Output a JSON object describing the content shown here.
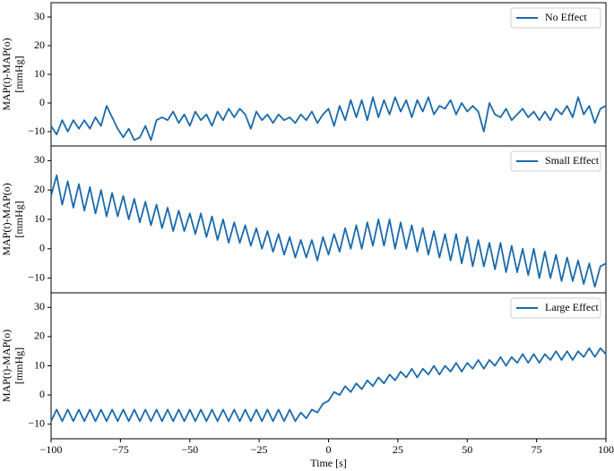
{
  "chart_data": [
    {
      "type": "line",
      "ylabel": [
        "MAP(t)-MAP(o)",
        "[mmHg]"
      ],
      "x": [
        -100,
        -98,
        -96,
        -94,
        -92,
        -90,
        -88,
        -86,
        -84,
        -82,
        -80,
        -78,
        -76,
        -74,
        -72,
        -70,
        -68,
        -66,
        -64,
        -62,
        -60,
        -58,
        -56,
        -54,
        -52,
        -50,
        -48,
        -46,
        -44,
        -42,
        -40,
        -38,
        -36,
        -34,
        -32,
        -30,
        -28,
        -26,
        -24,
        -22,
        -20,
        -18,
        -16,
        -14,
        -12,
        -10,
        -8,
        -6,
        -4,
        -2,
        0,
        2,
        4,
        6,
        8,
        10,
        12,
        14,
        16,
        18,
        20,
        22,
        24,
        26,
        28,
        30,
        32,
        34,
        36,
        38,
        40,
        42,
        44,
        46,
        48,
        50,
        52,
        54,
        56,
        58,
        60,
        62,
        64,
        66,
        68,
        70,
        72,
        74,
        76,
        78,
        80,
        82,
        84,
        86,
        88,
        90,
        92,
        94,
        96,
        98,
        100
      ],
      "series": [
        {
          "name": "No Effect",
          "color": "#1a6aab",
          "values": [
            -8,
            -11,
            -6,
            -10,
            -6,
            -9,
            -6,
            -9,
            -5,
            -8,
            -1,
            -5,
            -9,
            -12,
            -9,
            -13,
            -12,
            -8,
            -13,
            -6,
            -5,
            -6,
            -3,
            -7,
            -4,
            -8,
            -3,
            -6,
            -4,
            -8,
            -3,
            -6,
            -2,
            -5,
            -2,
            -4,
            -9,
            -3,
            -6,
            -4,
            -7,
            -4,
            -6,
            -5,
            -7,
            -4,
            -6,
            -3,
            -7,
            -4,
            -2,
            -8,
            -1,
            -6,
            1,
            -5,
            1,
            -6,
            2,
            -5,
            1,
            -4,
            2,
            -3,
            1,
            -5,
            1,
            -3,
            2,
            -4,
            -1,
            -2,
            1,
            -4,
            0,
            -3,
            -1,
            -3,
            -10,
            0,
            -4,
            -5,
            -2,
            -6,
            -4,
            -2,
            -5,
            -3,
            -6,
            -3,
            -6,
            -2,
            -4,
            -1,
            -5,
            2,
            -4,
            -1,
            -7,
            -2,
            -1
          ]
        }
      ],
      "xlim": [
        -100,
        100
      ],
      "ylim": [
        -15,
        35
      ],
      "yticks": [
        {
          "value": -10,
          "label": "−10"
        },
        0,
        10,
        20,
        30
      ],
      "legend": "upper right"
    },
    {
      "type": "line",
      "ylabel": [
        "MAP(t)-MAP(o)",
        "[mmHg]"
      ],
      "x": [
        -100,
        -98,
        -96,
        -94,
        -92,
        -90,
        -88,
        -86,
        -84,
        -82,
        -80,
        -78,
        -76,
        -74,
        -72,
        -70,
        -68,
        -66,
        -64,
        -62,
        -60,
        -58,
        -56,
        -54,
        -52,
        -50,
        -48,
        -46,
        -44,
        -42,
        -40,
        -38,
        -36,
        -34,
        -32,
        -30,
        -28,
        -26,
        -24,
        -22,
        -20,
        -18,
        -16,
        -14,
        -12,
        -10,
        -8,
        -6,
        -4,
        -2,
        0,
        2,
        4,
        6,
        8,
        10,
        12,
        14,
        16,
        18,
        20,
        22,
        24,
        26,
        28,
        30,
        32,
        34,
        36,
        38,
        40,
        42,
        44,
        46,
        48,
        50,
        52,
        54,
        56,
        58,
        60,
        62,
        64,
        66,
        68,
        70,
        72,
        74,
        76,
        78,
        80,
        82,
        84,
        86,
        88,
        90,
        92,
        94,
        96,
        98,
        100
      ],
      "series": [
        {
          "name": "Small Effect",
          "color": "#1a6aab",
          "values": [
            18,
            25,
            15,
            23,
            14,
            22,
            13,
            21,
            12,
            20,
            11,
            19,
            11,
            18,
            10,
            17,
            9,
            16,
            8,
            15,
            7,
            14,
            6,
            13,
            6,
            12,
            5,
            12,
            4,
            11,
            3,
            10,
            2,
            9,
            2,
            8,
            1,
            7,
            0,
            6,
            -1,
            5,
            -2,
            4,
            -3,
            3,
            -3,
            3,
            -4,
            4,
            -2,
            5,
            -1,
            7,
            0,
            8,
            0,
            9,
            1,
            10,
            1,
            10,
            0,
            9,
            0,
            8,
            -1,
            7,
            -2,
            6,
            -3,
            5,
            -4,
            5,
            -5,
            4,
            -6,
            3,
            -6,
            2,
            -7,
            2,
            -8,
            1,
            -8,
            0,
            -9,
            0,
            -10,
            -1,
            -10,
            -2,
            -11,
            -3,
            -11,
            -4,
            -12,
            -5,
            -13,
            -6,
            -5
          ]
        }
      ],
      "xlim": [
        -100,
        100
      ],
      "ylim": [
        -15,
        35
      ],
      "yticks": [
        {
          "value": -10,
          "label": "−10"
        },
        0,
        10,
        20,
        30
      ],
      "legend": "upper right"
    },
    {
      "type": "line",
      "ylabel": [
        "MAP(t)-MAP(o)",
        "[mmHg]"
      ],
      "xlabel": "Time [s]",
      "x": [
        -100,
        -98,
        -96,
        -94,
        -92,
        -90,
        -88,
        -86,
        -84,
        -82,
        -80,
        -78,
        -76,
        -74,
        -72,
        -70,
        -68,
        -66,
        -64,
        -62,
        -60,
        -58,
        -56,
        -54,
        -52,
        -50,
        -48,
        -46,
        -44,
        -42,
        -40,
        -38,
        -36,
        -34,
        -32,
        -30,
        -28,
        -26,
        -24,
        -22,
        -20,
        -18,
        -16,
        -14,
        -12,
        -10,
        -8,
        -6,
        -4,
        -2,
        0,
        2,
        4,
        6,
        8,
        10,
        12,
        14,
        16,
        18,
        20,
        22,
        24,
        26,
        28,
        30,
        32,
        34,
        36,
        38,
        40,
        42,
        44,
        46,
        48,
        50,
        52,
        54,
        56,
        58,
        60,
        62,
        64,
        66,
        68,
        70,
        72,
        74,
        76,
        78,
        80,
        82,
        84,
        86,
        88,
        90,
        92,
        94,
        96,
        98,
        100
      ],
      "series": [
        {
          "name": "Large Effect",
          "color": "#1a6aab",
          "values": [
            -9,
            -5,
            -9,
            -5,
            -9,
            -5,
            -9,
            -5,
            -9,
            -5,
            -9,
            -5,
            -9,
            -5,
            -9,
            -5,
            -9,
            -5,
            -9,
            -5,
            -9,
            -5,
            -9,
            -5,
            -9,
            -5,
            -9,
            -5,
            -9,
            -5,
            -9,
            -5,
            -9,
            -5,
            -9,
            -5,
            -9,
            -5,
            -9,
            -5,
            -9,
            -5,
            -9,
            -5,
            -9,
            -6,
            -8,
            -5,
            -6,
            -3,
            -2,
            1,
            0,
            3,
            1,
            4,
            2,
            5,
            3,
            6,
            4,
            7,
            5,
            8,
            6,
            9,
            6,
            9,
            7,
            10,
            7,
            10,
            8,
            11,
            8,
            11,
            9,
            12,
            9,
            12,
            10,
            13,
            10,
            13,
            11,
            14,
            11,
            14,
            11,
            14,
            12,
            15,
            12,
            15,
            12,
            15,
            13,
            16,
            13,
            16,
            14
          ]
        }
      ],
      "xlim": [
        -100,
        100
      ],
      "ylim": [
        -15,
        35
      ],
      "xticks": [
        {
          "value": -100,
          "label": "−100"
        },
        {
          "value": -75,
          "label": "−75"
        },
        {
          "value": -50,
          "label": "−50"
        },
        {
          "value": -25,
          "label": "−25"
        },
        0,
        25,
        50,
        75,
        100
      ],
      "yticks": [
        {
          "value": -10,
          "label": "−10"
        },
        0,
        10,
        20,
        30
      ],
      "legend": "upper right"
    }
  ]
}
